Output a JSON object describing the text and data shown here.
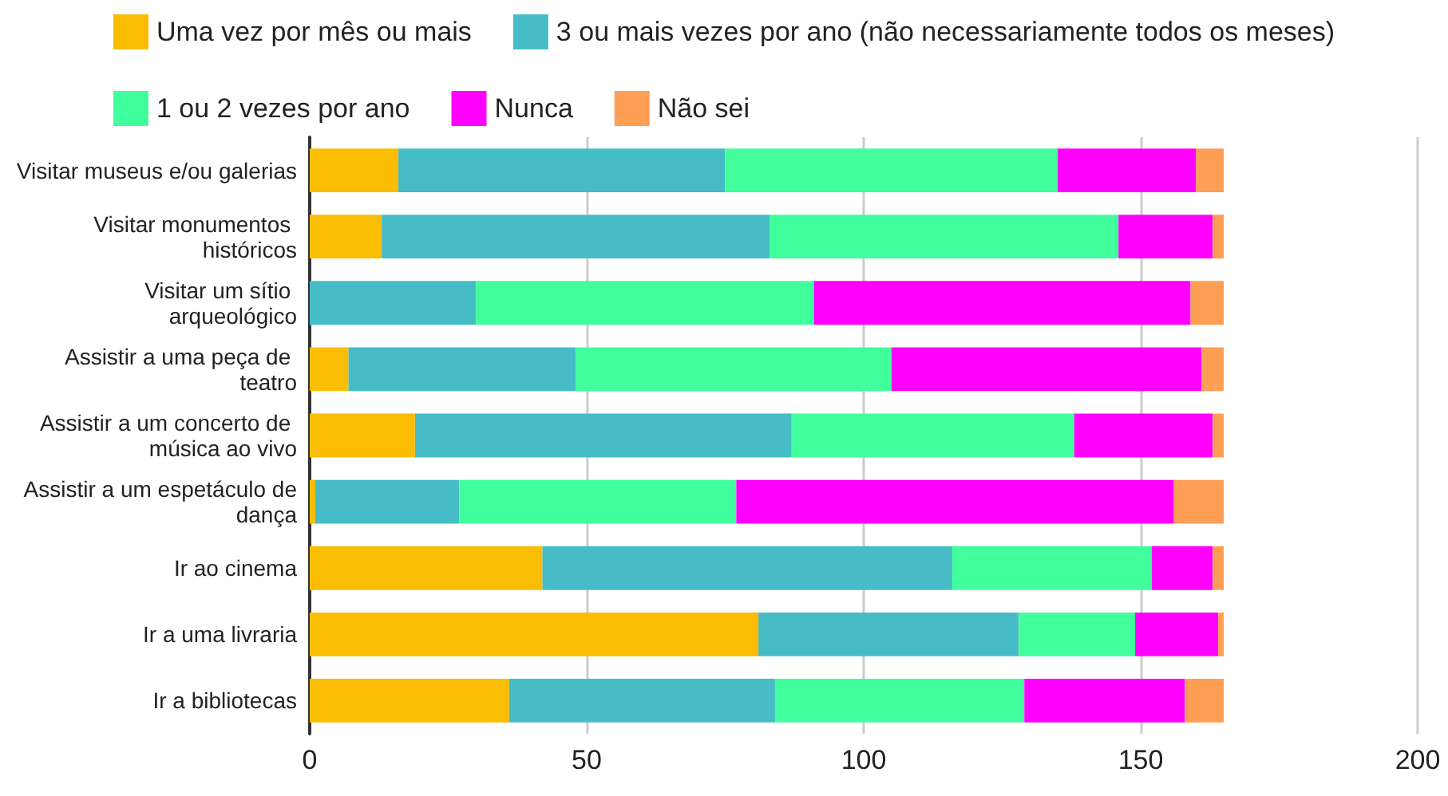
{
  "chart_data": {
    "type": "bar",
    "orientation": "horizontal",
    "stacked": true,
    "categories": [
      "Visitar museus e/ou galerias",
      "Visitar monumentos históricos",
      "Visitar um sítio arqueológico",
      "Assistir a uma peça de teatro",
      "Assistir a um concerto de música ao vivo",
      "Assistir a um espetáculo de dança",
      "Ir ao cinema",
      "Ir a uma livraria",
      "Ir a bibliotecas"
    ],
    "series": [
      {
        "name": "Uma vez por mês ou mais",
        "color": "#fbbc04",
        "values": [
          16,
          13,
          0,
          7,
          19,
          1,
          42,
          81,
          36
        ]
      },
      {
        "name": "3 ou mais vezes por ano (não necessariamente todos os meses)",
        "color": "#46bdc6",
        "values": [
          59,
          70,
          30,
          41,
          68,
          26,
          74,
          47,
          48
        ]
      },
      {
        "name": "1 ou 2 vezes por ano",
        "color": "#40ff9c",
        "values": [
          60,
          63,
          61,
          57,
          51,
          50,
          36,
          21,
          45
        ]
      },
      {
        "name": "Nunca",
        "color": "#ff00ff",
        "values": [
          25,
          17,
          68,
          56,
          25,
          79,
          11,
          15,
          29
        ]
      },
      {
        "name": "Não sei",
        "color": "#ff9e55",
        "values": [
          5,
          2,
          6,
          4,
          2,
          9,
          2,
          1,
          7
        ]
      }
    ],
    "xlim": [
      0,
      200
    ],
    "xticks": [
      0,
      50,
      100,
      150,
      200
    ],
    "grid": "x",
    "legend": "top"
  }
}
